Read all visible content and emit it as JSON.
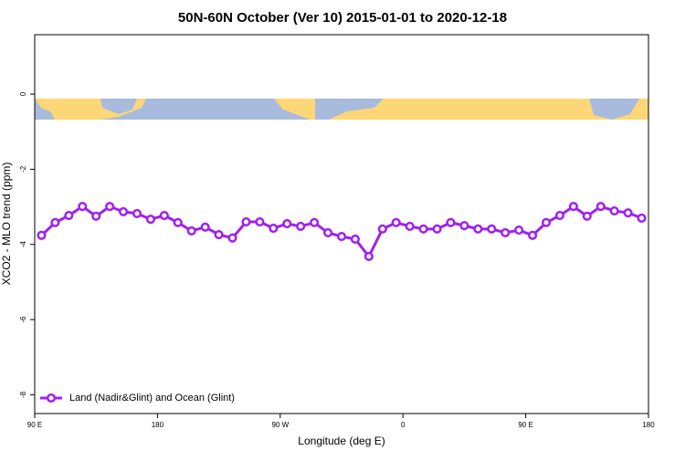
{
  "chart_data": {
    "type": "line",
    "title": "50N-60N October (Ver 10)   2015-01-01 to 2020-12-18",
    "x_label": "Longitude (deg E)",
    "y_label": "XCO2 - MLO trend (ppm)",
    "x": [
      95,
      105,
      115,
      125,
      135,
      145,
      155,
      165,
      175,
      185,
      195,
      205,
      215,
      225,
      235,
      245,
      255,
      265,
      275,
      285,
      295,
      305,
      315,
      325,
      335,
      345,
      355,
      365,
      375,
      385,
      395,
      405,
      415,
      425,
      435,
      445,
      455,
      465,
      475,
      485,
      495,
      505,
      515,
      525,
      535
    ],
    "series": [
      {
        "name": "Land (Nadir&Glint) and Ocean (Glint)",
        "color": "#a020f0",
        "values": [
          -3.76,
          -3.42,
          -3.23,
          -2.99,
          -3.25,
          -2.99,
          -3.13,
          -3.18,
          -3.33,
          -3.23,
          -3.42,
          -3.64,
          -3.54,
          -3.74,
          -3.83,
          -3.4,
          -3.4,
          -3.57,
          -3.45,
          -3.52,
          -3.42,
          -3.69,
          -3.79,
          -3.86,
          -4.32,
          -3.59,
          -3.42,
          -3.52,
          -3.59,
          -3.59,
          -3.42,
          -3.5,
          -3.59,
          -3.59,
          -3.69,
          -3.62,
          -3.76,
          -3.42,
          -3.23,
          -2.99,
          -3.25,
          -2.99,
          -3.11,
          -3.16,
          -3.3
        ]
      }
    ],
    "xlim": [
      90,
      540
    ],
    "xticks": [
      {
        "value": 90,
        "label": "90 E"
      },
      {
        "value": 180,
        "label": "180"
      },
      {
        "value": 270,
        "label": "90 W"
      },
      {
        "value": 360,
        "label": "0"
      },
      {
        "value": 450,
        "label": "90 E"
      },
      {
        "value": 540,
        "label": "180"
      }
    ],
    "ylim": [
      -8.5,
      1.58
    ],
    "yticks": [
      0,
      -2,
      -4,
      -6,
      -8
    ],
    "legend": "bottom-left"
  }
}
